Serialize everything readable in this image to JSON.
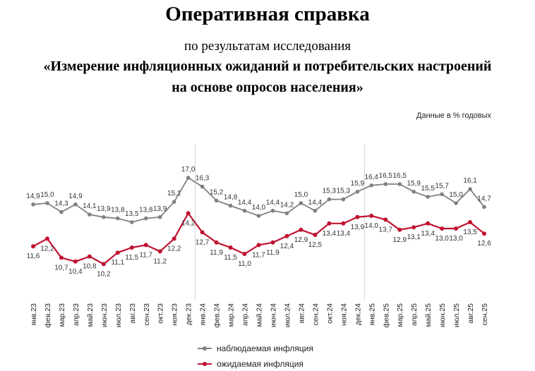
{
  "header": {
    "title": "Оперативная справка",
    "subtitle": "по результатам исследования",
    "study_line1": "«Измерение инфляционных ожиданий и потребительских настроений",
    "study_line2": "на основе опросов населения»"
  },
  "chart_data": {
    "type": "line",
    "unit_note": "Данные в % годовых",
    "categories": [
      "янв.23",
      "фев.23",
      "мар.23",
      "апр.23",
      "май.23",
      "июн.23",
      "июл.23",
      "авг.23",
      "сен.23",
      "окт.23",
      "ноя.23",
      "дек.23",
      "янв.24",
      "фев.24",
      "мар.24",
      "апр.24",
      "май.24",
      "июн.24",
      "июл.24",
      "авг.24",
      "сен.24",
      "окт.24",
      "ноя.24",
      "дек.24",
      "янв.25",
      "фев.25",
      "мар.25",
      "апр.25",
      "май.25",
      "июн.25",
      "июл.25",
      "авг.25",
      "сен.25"
    ],
    "series": [
      {
        "name": "наблюдаемая инфляция",
        "color": "#808080",
        "values": [
          14.9,
          15.0,
          14.3,
          14.9,
          14.1,
          13.9,
          13.8,
          13.5,
          13.8,
          13.9,
          15.1,
          17.0,
          16.3,
          15.2,
          14.8,
          14.4,
          14.0,
          14.4,
          14.2,
          15.0,
          14.4,
          15.3,
          15.3,
          15.9,
          16.4,
          16.5,
          16.5,
          15.9,
          15.5,
          15.7,
          15.0,
          16.1,
          14.7
        ]
      },
      {
        "name": "ожидаемая инфляция",
        "color": "#C0112F",
        "values": [
          11.6,
          12.2,
          10.7,
          10.4,
          10.8,
          10.2,
          11.1,
          11.5,
          11.7,
          11.2,
          12.2,
          14.2,
          12.7,
          11.9,
          11.5,
          11.0,
          11.7,
          11.9,
          12.4,
          12.9,
          12.5,
          13.4,
          13.4,
          13.9,
          14.0,
          13.7,
          12.9,
          13.1,
          13.4,
          13.0,
          13.0,
          13.5,
          12.6
        ]
      }
    ],
    "year_separators_after": [
      "дек.23",
      "дек.24"
    ],
    "legend_position": "bottom",
    "grid": false
  }
}
